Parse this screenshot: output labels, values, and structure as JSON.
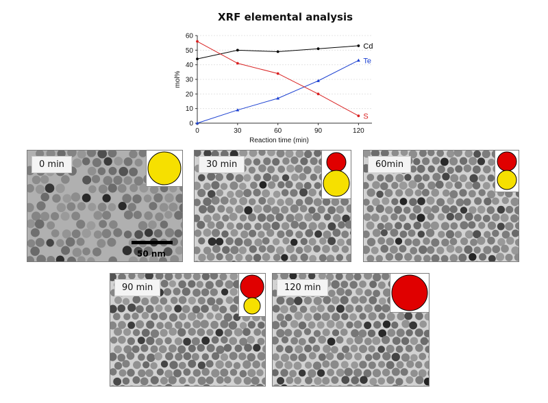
{
  "title": "XRF elemental analysis",
  "chart_data": {
    "type": "line",
    "xlabel": "Reaction time (min)",
    "ylabel": "mol%",
    "x": [
      0,
      30,
      60,
      90,
      120
    ],
    "xlim": [
      0,
      130
    ],
    "ylim": [
      0,
      60
    ],
    "xticks": [
      "0",
      "30",
      "60",
      "90",
      "120"
    ],
    "yticks": [
      "0",
      "10",
      "20",
      "30",
      "40",
      "50",
      "60"
    ],
    "series": [
      {
        "name": "Cd",
        "values": [
          44,
          50,
          49,
          51,
          53
        ],
        "color": "#000000"
      },
      {
        "name": "Te",
        "values": [
          0,
          9,
          17,
          29,
          43
        ],
        "color": "#1a3fd1"
      },
      {
        "name": "S",
        "values": [
          56,
          41,
          34,
          20,
          5
        ],
        "color": "#d92020"
      }
    ],
    "grid": "horizontal dashed"
  },
  "panels": [
    {
      "label": "0 min",
      "scalebar": "50 nm"
    },
    {
      "label": "30 min"
    },
    {
      "label": "60min"
    },
    {
      "label": "90 min"
    },
    {
      "label": "120 min"
    }
  ],
  "colors": {
    "sulfide": "#e00000",
    "telluride": "#f6e000"
  }
}
